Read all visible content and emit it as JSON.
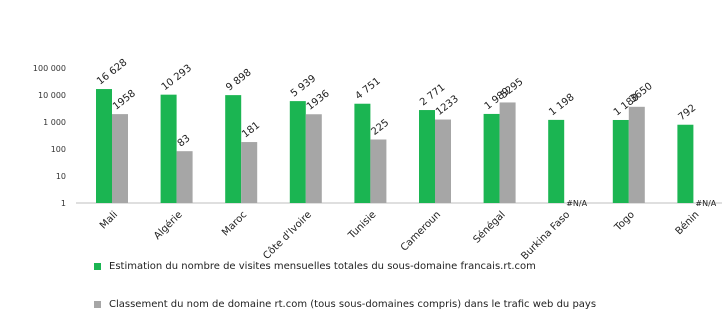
{
  "chart_data": {
    "type": "bar",
    "scale": "log",
    "ylim": [
      1,
      100000
    ],
    "yticks": [
      "1",
      "10",
      "100",
      "1 000",
      "10 000",
      "100 000"
    ],
    "categories": [
      "Mali",
      "Algérie",
      "Maroc",
      "Côte d'Ivoire",
      "Tunisie",
      "Cameroun",
      "Sénégal",
      "Burkina Faso",
      "Togo",
      "Bénin"
    ],
    "series": [
      {
        "name": "Estimation du nombre de visites mensuelles totales du sous-domaine francais.rt.com",
        "color": "#1bb552",
        "values": [
          16628,
          10293,
          9898,
          5939,
          4751,
          2771,
          1989,
          1198,
          1188,
          792
        ],
        "labels": [
          "16 628",
          "10 293",
          "9 898",
          "5 939",
          "4 751",
          "2 771",
          "1 989",
          "1 198",
          "1 188",
          "792"
        ]
      },
      {
        "name": "Classement du nom de domaine rt.com (tous sous-domaines compris) dans le trafic web du pays",
        "color": "#a6a6a6",
        "values": [
          1958,
          83,
          181,
          1936,
          225,
          1233,
          5295,
          null,
          3650,
          null
        ],
        "labels": [
          "1958",
          "83",
          "181",
          "1936",
          "225",
          "1233",
          "5295",
          "#N/A",
          "3650",
          "#N/A"
        ]
      }
    ],
    "legend": "bottom",
    "grid": false
  }
}
